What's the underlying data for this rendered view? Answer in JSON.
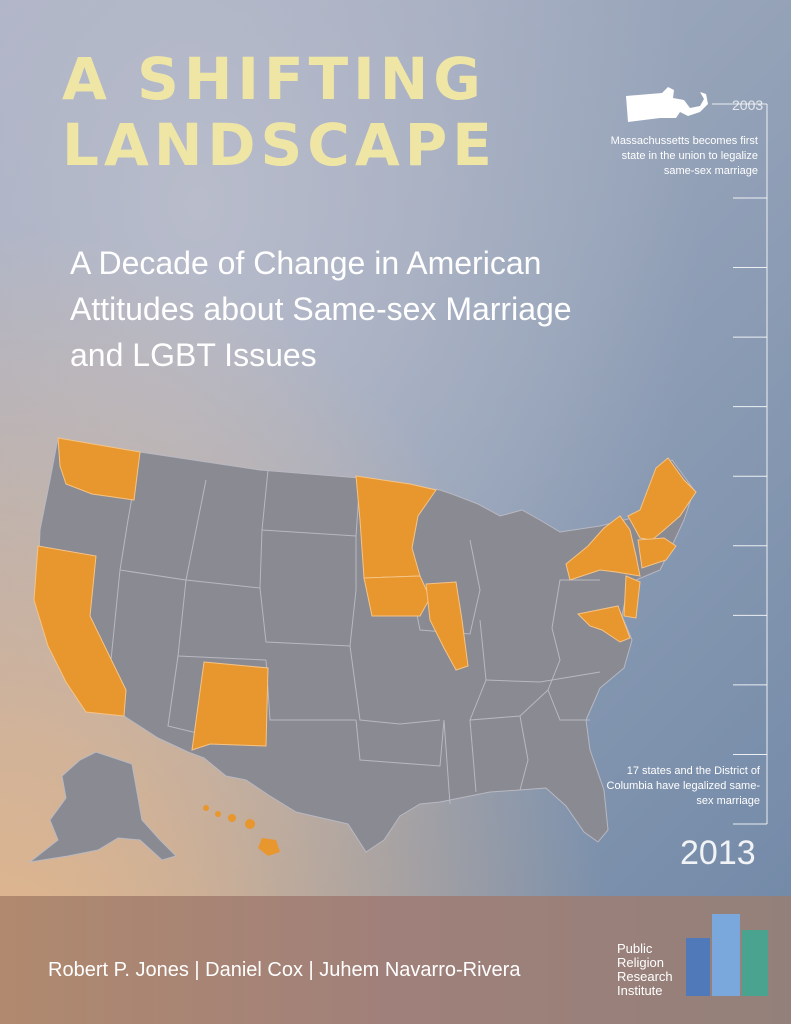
{
  "title": {
    "line1": "A SHIFTING",
    "line2": "LANDSCAPE"
  },
  "subtitle": {
    "line1": "A Decade of Change in American",
    "line2": "Attitudes about Same-sex Marriage",
    "line3": "and LGBT Issues"
  },
  "timeline": {
    "start_year": "2003",
    "start_note": "Massachussetts becomes first state in the union to legalize same-sex marriage",
    "end_year": "2013",
    "end_note": "17 states and the District of Columbia have legalized same-sex marriage"
  },
  "map": {
    "highlight_color": "#e8962e",
    "base_color": "#8a8a92",
    "highlighted_states": [
      "WA",
      "CA",
      "NM",
      "MN",
      "IA",
      "IL",
      "NY",
      "VT",
      "NH",
      "ME",
      "MA",
      "CT",
      "RI",
      "NJ",
      "DE",
      "MD",
      "HI",
      "DC"
    ]
  },
  "footer": {
    "authors": "Robert P. Jones | Daniel Cox | Juhem Navarro-Rivera",
    "org_line1": "Public",
    "org_line2": "Religion",
    "org_line3": "Research",
    "org_line4": "Institute"
  },
  "colors": {
    "title": "#efe6a6",
    "logo_blue_dark": "#4f79b8",
    "logo_blue_light": "#7aa8dc",
    "logo_teal": "#4aa38f"
  }
}
